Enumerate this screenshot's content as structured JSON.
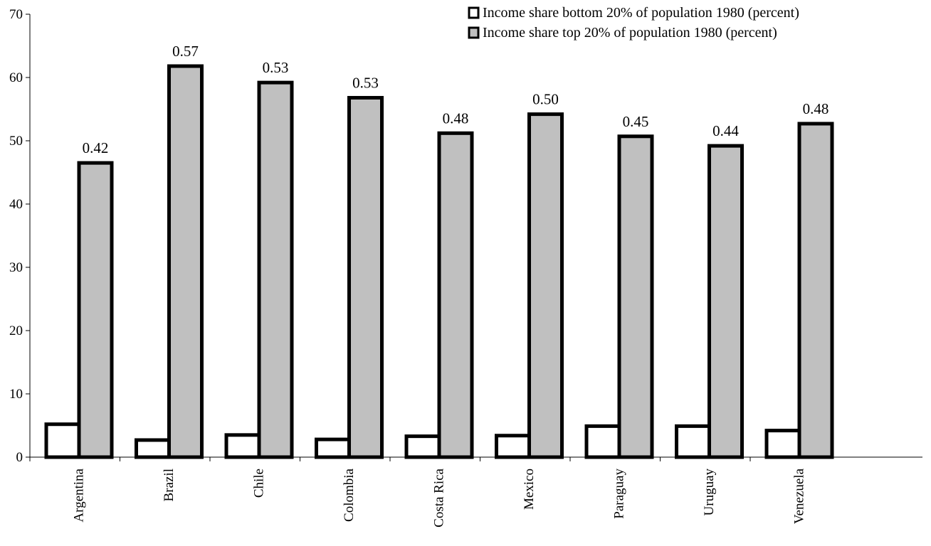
{
  "chart_data": {
    "type": "bar",
    "title": "",
    "xlabel": "",
    "ylabel": "",
    "categories": [
      "Argentina",
      "Brazil",
      "Chile",
      "Colombia",
      "Costa Rica",
      "Mexico",
      "Paraguay",
      "Uruguay",
      "Venezuela"
    ],
    "series": [
      {
        "name": "Income share bottom 20% of population 1980 (percent)",
        "values": [
          5.2,
          2.7,
          3.5,
          2.8,
          3.3,
          3.4,
          4.9,
          4.9,
          4.2
        ],
        "color": "#ffffff"
      },
      {
        "name": "Income share top 20% of population 1980 (percent)",
        "values": [
          46.5,
          61.8,
          59.2,
          56.8,
          51.2,
          54.2,
          50.7,
          49.2,
          52.7
        ],
        "color": "#c0c0c0",
        "data_labels": [
          "0.42",
          "0.57",
          "0.53",
          "0.53",
          "0.48",
          "0.50",
          "0.45",
          "0.44",
          "0.48"
        ]
      }
    ],
    "ylim": [
      0,
      70
    ],
    "yticks": [
      0,
      10,
      20,
      30,
      40,
      50,
      60,
      70
    ],
    "grid": false,
    "legend_position": "top-right",
    "bar_stroke_color": "#000000"
  }
}
